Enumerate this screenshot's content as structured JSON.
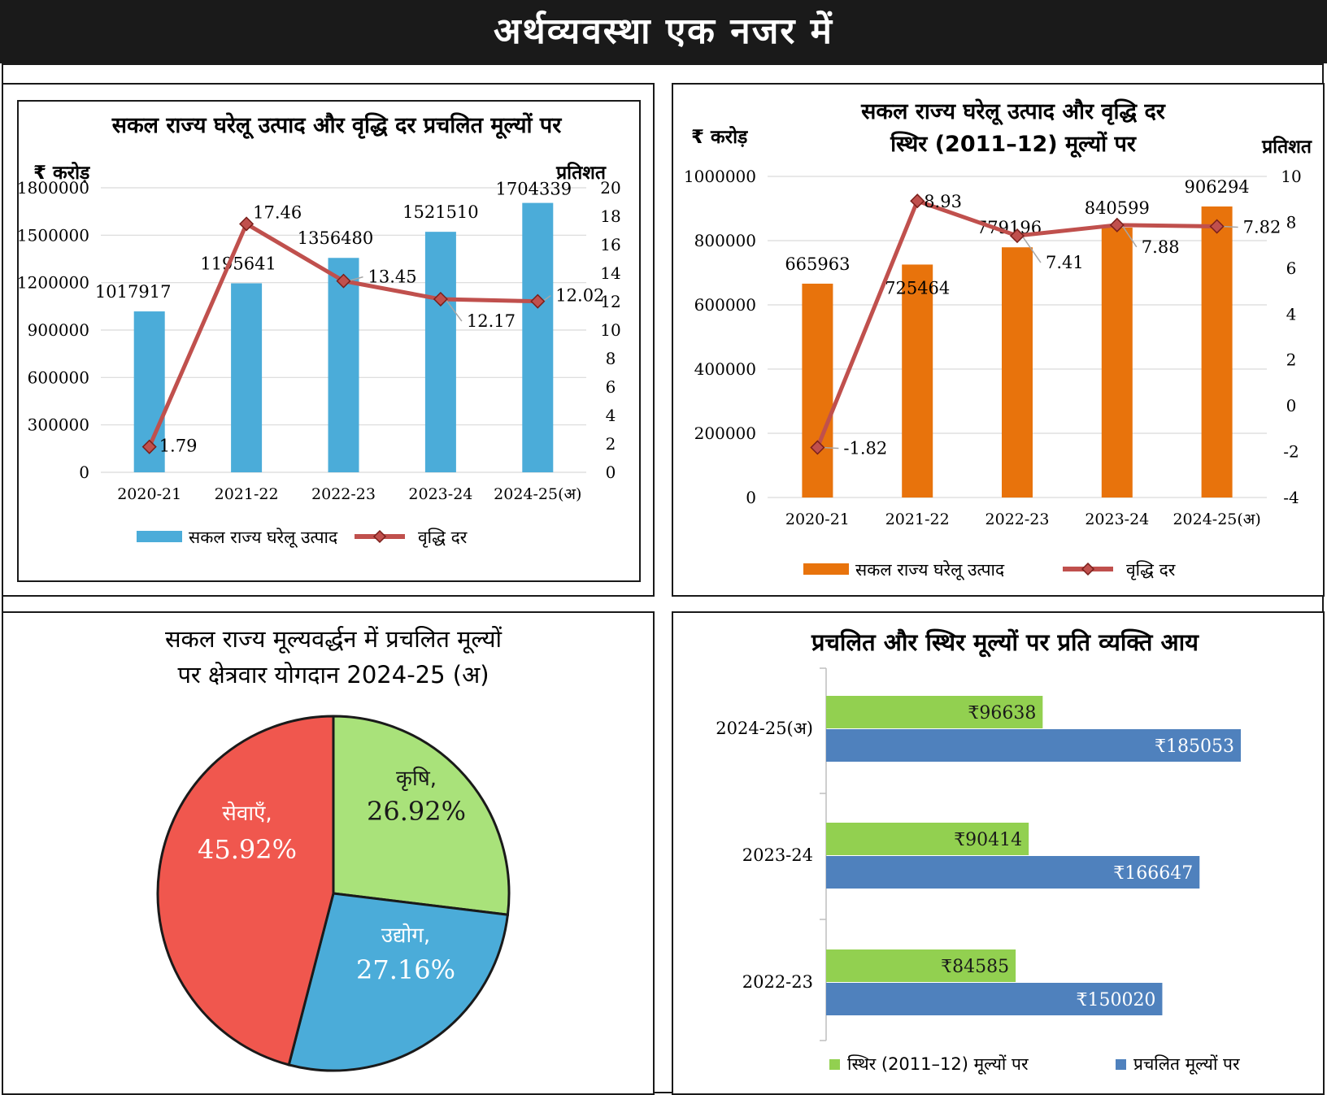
{
  "page_title": "अर्थव्यवस्था एक नजर में",
  "chart_data": [
    {
      "type": "bar+line",
      "title": "सकल राज्य घरेलू उत्पाद और वृद्धि दर प्रचलित मूल्यों पर",
      "ylabel_left": "₹ करोड़",
      "ylabel_right": "प्रतिशत",
      "categories": [
        "2020-21",
        "2021-22",
        "2022-23",
        "2023-24",
        "2024-25(अ)"
      ],
      "series": [
        {
          "name": "सकल राज्य घरेलू उत्पाद",
          "kind": "bar",
          "axis": "left",
          "color": "#4bacd9",
          "values": [
            1017917,
            1195641,
            1356480,
            1521510,
            1704339
          ]
        },
        {
          "name": "वृद्धि दर",
          "kind": "line",
          "axis": "right",
          "color": "#c0504d",
          "values": [
            1.79,
            17.46,
            13.45,
            12.17,
            12.02
          ]
        }
      ],
      "ylim_left": [
        0,
        1800000
      ],
      "yticks_left": [
        "0",
        "300000",
        "600000",
        "900000",
        "1200000",
        "1500000",
        "1800000"
      ],
      "ylim_right": [
        0,
        20
      ],
      "yticks_right": [
        "0",
        "2",
        "4",
        "6",
        "8",
        "10",
        "12",
        "14",
        "16",
        "18",
        "20"
      ],
      "grid": true,
      "legend": "bottom"
    },
    {
      "type": "bar+line",
      "title": "सकल राज्य घरेलू उत्पाद और वृद्धि दर",
      "subtitle": "स्थिर (2011–12) मूल्यों पर",
      "ylabel_left": "₹ करोड़",
      "ylabel_right": "प्रतिशत",
      "categories": [
        "2020-21",
        "2021-22",
        "2022-23",
        "2023-24",
        "2024-25(अ)"
      ],
      "series": [
        {
          "name": "सकल राज्य घरेलू उत्पाद",
          "kind": "bar",
          "axis": "left",
          "color": "#e8730c",
          "values": [
            665963,
            725464,
            779196,
            840599,
            906294
          ]
        },
        {
          "name": "वृद्धि दर",
          "kind": "line",
          "axis": "right",
          "color": "#c0504d",
          "values": [
            -1.82,
            8.93,
            7.41,
            7.88,
            7.82
          ]
        }
      ],
      "ylim_left": [
        0,
        1000000
      ],
      "yticks_left": [
        "0",
        "200000",
        "400000",
        "600000",
        "800000",
        "1000000"
      ],
      "ylim_right": [
        -4,
        10
      ],
      "yticks_right": [
        "-4",
        "-2",
        "0",
        "2",
        "4",
        "6",
        "8",
        "10"
      ],
      "grid": true,
      "legend": "bottom"
    },
    {
      "type": "pie",
      "title": "सकल राज्य मूल्यवर्द्धन में प्रचलित मूल्यों पर क्षेत्रवार योगदान 2024-25 (अ)",
      "title_lines": [
        "सकल राज्य मूल्यवर्द्धन में प्रचलित मूल्यों",
        "पर क्षेत्रवार योगदान 2024-25 (अ)"
      ],
      "slices": [
        {
          "label": "कृषि,",
          "pct_label": "26.92%",
          "value": 26.92,
          "color": "#a9e27a"
        },
        {
          "label": "उद्योग,",
          "pct_label": "27.16%",
          "value": 27.16,
          "color": "#4bacd9"
        },
        {
          "label": "सेवाएँ,",
          "pct_label": "45.92%",
          "value": 45.92,
          "color": "#f0574e"
        }
      ]
    },
    {
      "type": "bar",
      "orientation": "horizontal",
      "title": "प्रचलित और स्थिर मूल्यों पर प्रति व्यक्ति आय",
      "categories": [
        "2024-25(अ)",
        "2023-24",
        "2022-23"
      ],
      "series": [
        {
          "name": "स्थिर (2011–12) मूल्यों पर",
          "color": "#92d050",
          "values": [
            96638,
            90414,
            84585
          ],
          "labels": [
            "₹96638",
            "₹90414",
            "₹84585"
          ]
        },
        {
          "name": "प्रचलित मूल्यों पर",
          "color": "#4f81bd",
          "values": [
            185053,
            166647,
            150020
          ],
          "labels": [
            "₹185053",
            "₹166647",
            "₹150020"
          ]
        }
      ],
      "xlim": [
        0,
        200000
      ],
      "legend": "bottom"
    }
  ]
}
